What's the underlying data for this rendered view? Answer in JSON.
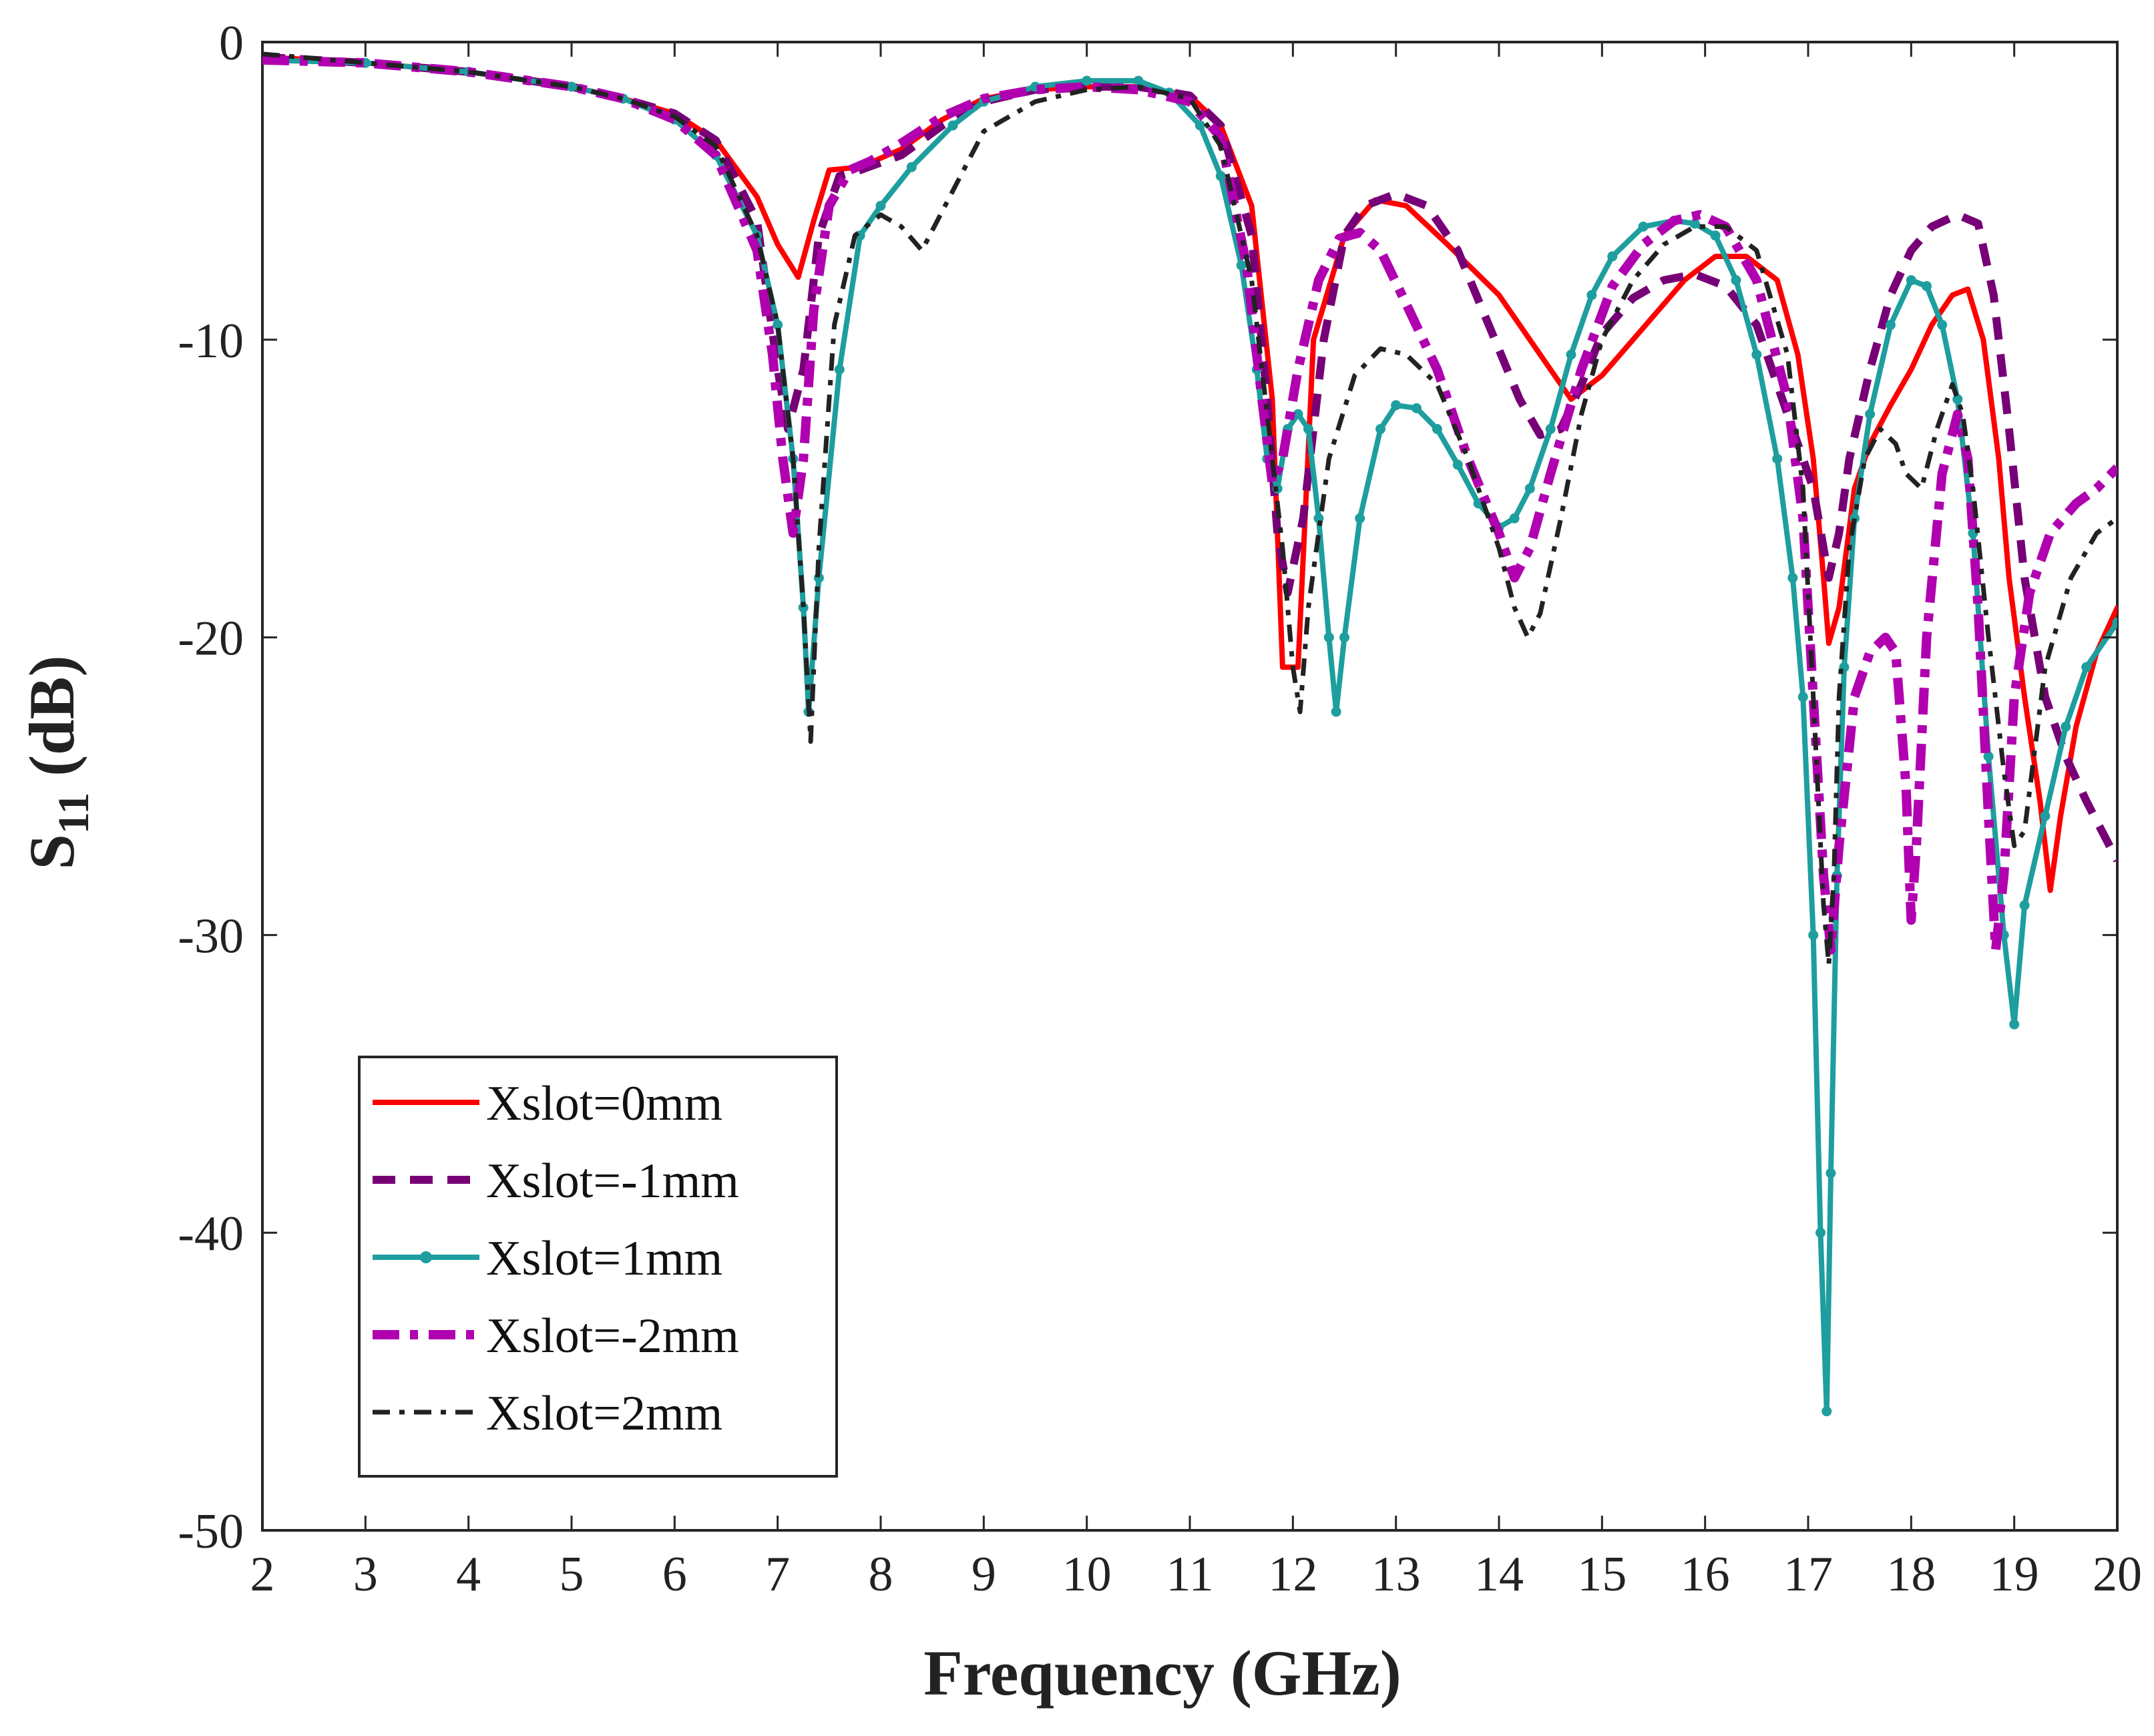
{
  "chart_data": {
    "type": "line",
    "title": "",
    "xlabel": "Frequency (GHz)",
    "ylabel_main": "S",
    "ylabel_sub": "11",
    "ylabel_tail": " (dB)",
    "xlim": [
      2,
      20
    ],
    "ylim": [
      -50,
      0
    ],
    "xticks": [
      2,
      3,
      4,
      5,
      6,
      7,
      8,
      9,
      10,
      11,
      12,
      13,
      14,
      15,
      16,
      17,
      18,
      19,
      20
    ],
    "yticks": [
      0,
      -10,
      -20,
      -30,
      -40,
      -50
    ],
    "grid": false,
    "legend_position": "bottom-left",
    "series": [
      {
        "name": "Xslot=0mm",
        "color": "#ff0000",
        "style": "solid",
        "x": [
          2,
          3,
          4,
          5,
          5.5,
          6,
          6.4,
          6.8,
          7,
          7.2,
          7.35,
          7.5,
          7.8,
          8.2,
          8.6,
          9,
          9.5,
          10,
          10.5,
          11,
          11.3,
          11.6,
          11.8,
          11.9,
          12.05,
          12.2,
          12.5,
          12.8,
          13.1,
          13.5,
          14,
          14.4,
          14.7,
          15,
          15.4,
          15.8,
          16.1,
          16.4,
          16.7,
          16.9,
          17.05,
          17.15,
          17.2,
          17.3,
          17.45,
          17.6,
          17.8,
          18,
          18.2,
          18.4,
          18.55,
          18.7,
          18.85,
          18.95,
          19.1,
          19.25,
          19.35,
          19.45,
          19.6,
          19.8,
          20
        ],
        "y": [
          -0.5,
          -0.7,
          -1,
          -1.5,
          -1.9,
          -2.4,
          -3.3,
          -5.2,
          -6.8,
          -7.9,
          -6,
          -4.3,
          -4.2,
          -3.6,
          -2.6,
          -1.9,
          -1.6,
          -1.5,
          -1.5,
          -1.8,
          -2.8,
          -5.5,
          -12,
          -21,
          -21,
          -10,
          -6.5,
          -5.3,
          -5.5,
          -6.8,
          -8.5,
          -10.5,
          -12,
          -11.2,
          -9.6,
          -8,
          -7.2,
          -7.2,
          -8,
          -10.5,
          -14,
          -18,
          -20.2,
          -19,
          -15,
          -13.5,
          -12.2,
          -11,
          -9.5,
          -8.5,
          -8.3,
          -10,
          -14,
          -18,
          -22,
          -25.5,
          -28.5,
          -26,
          -23,
          -20.5,
          -19
        ]
      },
      {
        "name": "Xslot=-1mm",
        "color": "#770077",
        "style": "dash",
        "x": [
          2,
          3,
          4,
          5,
          5.5,
          6,
          6.4,
          6.8,
          6.9,
          7.0,
          7.1,
          7.25,
          7.4,
          7.6,
          7.8,
          8.2,
          8.6,
          9,
          9.5,
          10,
          10.5,
          11,
          11.3,
          11.6,
          11.75,
          11.85,
          11.95,
          12.1,
          12.3,
          12.5,
          12.7,
          13,
          13.3,
          13.6,
          13.9,
          14.2,
          14.4,
          14.6,
          14.8,
          15,
          15.3,
          15.6,
          15.9,
          16.2,
          16.5,
          16.8,
          17.05,
          17.15,
          17.2,
          17.3,
          17.4,
          17.6,
          17.8,
          18,
          18.2,
          18.45,
          18.65,
          18.8,
          18.95,
          19.1,
          19.3,
          19.5,
          19.7,
          19.85,
          20
        ],
        "y": [
          -0.5,
          -0.7,
          -1,
          -1.5,
          -1.9,
          -2.4,
          -3.3,
          -6,
          -8.5,
          -11,
          -13,
          -11,
          -6.5,
          -4.5,
          -4.3,
          -3.8,
          -2.8,
          -2,
          -1.6,
          -1.5,
          -1.5,
          -1.8,
          -2.8,
          -6.5,
          -12,
          -16.5,
          -18.5,
          -16,
          -10,
          -6.5,
          -5.5,
          -5.1,
          -5.5,
          -7,
          -9.5,
          -12,
          -13.2,
          -13,
          -11.5,
          -9.8,
          -8.6,
          -8,
          -7.8,
          -8.2,
          -9.5,
          -12.5,
          -15,
          -17,
          -18,
          -16.5,
          -14,
          -11,
          -8.5,
          -7,
          -6.2,
          -5.8,
          -6.1,
          -8.5,
          -13,
          -18,
          -22,
          -24,
          -25.5,
          -26.5,
          -27.5
        ]
      },
      {
        "name": "Xslot=1mm",
        "color": "#1e9e9e",
        "style": "solid-marker",
        "x": [
          2,
          3,
          4,
          5,
          5.5,
          6,
          6.4,
          6.8,
          7,
          7.15,
          7.25,
          7.3,
          7.4,
          7.6,
          7.8,
          8,
          8.3,
          8.7,
          9,
          9.5,
          10,
          10.5,
          10.8,
          11.1,
          11.3,
          11.5,
          11.65,
          11.75,
          11.85,
          11.95,
          12.05,
          12.15,
          12.25,
          12.35,
          12.42,
          12.5,
          12.65,
          12.85,
          13,
          13.2,
          13.4,
          13.6,
          13.8,
          14,
          14.15,
          14.3,
          14.5,
          14.7,
          14.9,
          15.1,
          15.4,
          15.7,
          15.9,
          16.1,
          16.3,
          16.5,
          16.7,
          16.85,
          16.95,
          17.05,
          17.12,
          17.18,
          17.22,
          17.28,
          17.35,
          17.45,
          17.6,
          17.8,
          18,
          18.15,
          18.3,
          18.45,
          18.6,
          18.75,
          18.9,
          19,
          19.1,
          19.3,
          19.5,
          19.7,
          20
        ],
        "y": [
          -0.6,
          -0.7,
          -1,
          -1.5,
          -1.9,
          -2.6,
          -3.8,
          -6.5,
          -9.5,
          -14,
          -19,
          -22.5,
          -18,
          -11,
          -6.5,
          -5.5,
          -4.2,
          -2.8,
          -2,
          -1.5,
          -1.3,
          -1.3,
          -1.7,
          -2.8,
          -4.5,
          -7.5,
          -11,
          -14,
          -15,
          -13,
          -12.5,
          -13,
          -16,
          -20,
          -22.5,
          -20,
          -16,
          -13,
          -12.2,
          -12.3,
          -13,
          -14.2,
          -15.5,
          -16.3,
          -16,
          -15,
          -13,
          -10.5,
          -8.5,
          -7.2,
          -6.2,
          -6,
          -6.1,
          -6.5,
          -8,
          -10.5,
          -14,
          -18,
          -22,
          -30,
          -40,
          -46,
          -38,
          -28,
          -21,
          -16,
          -12.5,
          -9.5,
          -8,
          -8.2,
          -9.5,
          -12,
          -16.5,
          -24,
          -30,
          -33,
          -29,
          -26,
          -23,
          -21,
          -19.5
        ]
      },
      {
        "name": "Xslot=-2mm",
        "color": "#b000b0",
        "style": "dashdot-thick",
        "x": [
          2,
          3,
          4,
          5,
          5.5,
          6,
          6.4,
          6.8,
          6.95,
          7.05,
          7.15,
          7.25,
          7.35,
          7.5,
          7.7,
          7.9,
          8.2,
          8.6,
          9,
          9.5,
          10,
          10.5,
          11,
          11.3,
          11.55,
          11.7,
          11.8,
          11.9,
          12.05,
          12.25,
          12.45,
          12.65,
          12.85,
          13.1,
          13.4,
          13.7,
          14,
          14.15,
          14.3,
          14.5,
          14.8,
          15.1,
          15.4,
          15.7,
          15.95,
          16.2,
          16.5,
          16.8,
          16.95,
          17.05,
          17.15,
          17.22,
          17.3,
          17.45,
          17.6,
          17.75,
          17.85,
          17.95,
          18.0,
          18.05,
          18.15,
          18.3,
          18.45,
          18.55,
          18.65,
          18.75,
          18.82,
          18.9,
          19,
          19.15,
          19.35,
          19.6,
          19.8,
          20
        ],
        "y": [
          -0.6,
          -0.7,
          -1,
          -1.5,
          -1.9,
          -2.6,
          -3.8,
          -7,
          -10.5,
          -14,
          -16.5,
          -14,
          -9,
          -5.5,
          -4.3,
          -4,
          -3.4,
          -2.5,
          -1.9,
          -1.6,
          -1.5,
          -1.6,
          -2,
          -3.2,
          -7.5,
          -12,
          -14.8,
          -14,
          -11,
          -8,
          -6.6,
          -6.4,
          -7,
          -8.8,
          -11,
          -14,
          -16.5,
          -18,
          -17,
          -14.5,
          -11,
          -8.2,
          -6.8,
          -6,
          -5.8,
          -6.2,
          -8,
          -12,
          -16,
          -22,
          -28,
          -30.5,
          -27,
          -22,
          -20.5,
          -20,
          -20.5,
          -25,
          -29.5,
          -27,
          -20,
          -14.5,
          -12.5,
          -14,
          -19,
          -26,
          -30.5,
          -28,
          -22,
          -18.5,
          -16.5,
          -15.5,
          -15,
          -14.3
        ]
      },
      {
        "name": "Xslot=2mm",
        "color": "#222222",
        "style": "dashdot",
        "x": [
          2,
          3,
          4,
          5,
          5.5,
          6,
          6.4,
          6.8,
          7,
          7.15,
          7.25,
          7.32,
          7.4,
          7.55,
          7.75,
          8,
          8.2,
          8.4,
          8.7,
          9,
          9.5,
          10,
          10.5,
          11,
          11.3,
          11.6,
          11.75,
          11.9,
          12.0,
          12.07,
          12.15,
          12.35,
          12.6,
          12.85,
          13.1,
          13.4,
          13.7,
          14,
          14.15,
          14.28,
          14.4,
          14.6,
          14.8,
          15,
          15.3,
          15.6,
          15.9,
          16.2,
          16.5,
          16.8,
          16.95,
          17.05,
          17.15,
          17.2,
          17.25,
          17.3,
          17.4,
          17.55,
          17.7,
          17.85,
          17.95,
          18.1,
          18.25,
          18.4,
          18.5,
          18.6,
          18.75,
          18.9,
          19,
          19.1,
          19.3,
          19.55,
          19.8,
          20
        ],
        "y": [
          -0.4,
          -0.7,
          -1,
          -1.5,
          -1.9,
          -2.5,
          -3.5,
          -6.5,
          -9.5,
          -14,
          -19,
          -23.5,
          -17,
          -9.5,
          -6.5,
          -5.8,
          -6.2,
          -7,
          -5,
          -3,
          -2,
          -1.6,
          -1.5,
          -1.9,
          -3.5,
          -8,
          -12.5,
          -17,
          -21,
          -22.5,
          -19,
          -14,
          -11.2,
          -10.3,
          -10.5,
          -11.5,
          -14,
          -17,
          -19,
          -20,
          -19.2,
          -16,
          -12.5,
          -10,
          -8,
          -6.8,
          -6.2,
          -6.2,
          -7,
          -10.5,
          -15,
          -22,
          -29,
          -31,
          -28,
          -22,
          -17,
          -14,
          -13,
          -13.5,
          -14.5,
          -15,
          -13,
          -11.5,
          -12.5,
          -15,
          -20,
          -24.5,
          -27,
          -26.5,
          -21,
          -18,
          -16.5,
          -16
        ]
      }
    ]
  }
}
